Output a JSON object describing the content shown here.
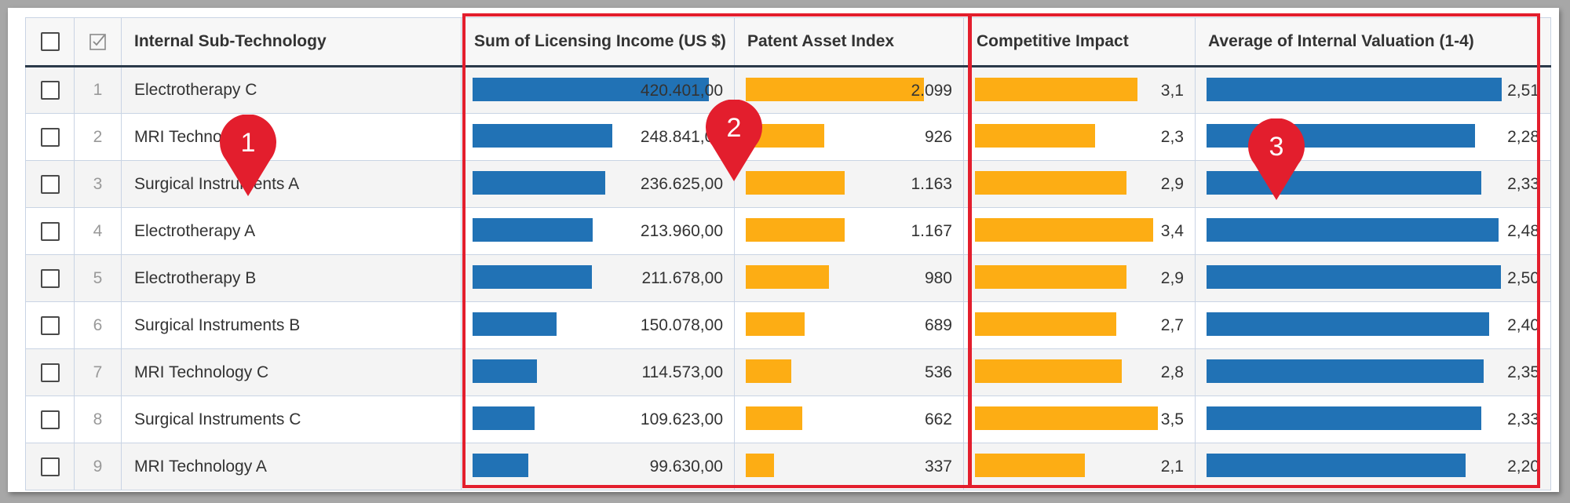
{
  "colors": {
    "blue_bar": "#2172b5",
    "orange_bar": "#fdad14",
    "highlight": "#e31e2d",
    "marker": "#e31e2d"
  },
  "header": {
    "columns": [
      "Internal Sub-Technology",
      "Sum of Licensing Income (US $)",
      "Patent Asset Index",
      "Competitive Impact",
      "Average of Internal Valuation (1-4)"
    ],
    "select_all_icon": "checkbox-icon",
    "index_icon": "checkmark-box-icon"
  },
  "markers": [
    "1",
    "2",
    "3"
  ],
  "rows": [
    {
      "index": "1",
      "name": "Electrotherapy C",
      "income": "420.401,00",
      "patent": "2.099",
      "impact": "3,1",
      "valuation": "2,51",
      "income_n": 420401,
      "patent_n": 2099,
      "impact_n": 3.1,
      "valuation_n": 2.51
    },
    {
      "index": "2",
      "name": "MRI Technology B",
      "income": "248.841,00",
      "patent": "926",
      "impact": "2,3",
      "valuation": "2,28",
      "income_n": 248841,
      "patent_n": 926,
      "impact_n": 2.3,
      "valuation_n": 2.28
    },
    {
      "index": "3",
      "name": "Surgical Instruments A",
      "income": "236.625,00",
      "patent": "1.163",
      "impact": "2,9",
      "valuation": "2,33",
      "income_n": 236625,
      "patent_n": 1163,
      "impact_n": 2.9,
      "valuation_n": 2.33
    },
    {
      "index": "4",
      "name": "Electrotherapy A",
      "income": "213.960,00",
      "patent": "1.167",
      "impact": "3,4",
      "valuation": "2,48",
      "income_n": 213960,
      "patent_n": 1167,
      "impact_n": 3.4,
      "valuation_n": 2.48
    },
    {
      "index": "5",
      "name": "Electrotherapy B",
      "income": "211.678,00",
      "patent": "980",
      "impact": "2,9",
      "valuation": "2,50",
      "income_n": 211678,
      "patent_n": 980,
      "impact_n": 2.9,
      "valuation_n": 2.5
    },
    {
      "index": "6",
      "name": "Surgical Instruments B",
      "income": "150.078,00",
      "patent": "689",
      "impact": "2,7",
      "valuation": "2,40",
      "income_n": 150078,
      "patent_n": 689,
      "impact_n": 2.7,
      "valuation_n": 2.4
    },
    {
      "index": "7",
      "name": "MRI Technology C",
      "income": "114.573,00",
      "patent": "536",
      "impact": "2,8",
      "valuation": "2,35",
      "income_n": 114573,
      "patent_n": 536,
      "impact_n": 2.8,
      "valuation_n": 2.35
    },
    {
      "index": "8",
      "name": "Surgical Instruments C",
      "income": "109.623,00",
      "patent": "662",
      "impact": "3,5",
      "valuation": "2,33",
      "income_n": 109623,
      "patent_n": 662,
      "impact_n": 3.5,
      "valuation_n": 2.33
    },
    {
      "index": "9",
      "name": "MRI Technology A",
      "income": "99.630,00",
      "patent": "337",
      "impact": "2,1",
      "valuation": "2,20",
      "income_n": 99630,
      "patent_n": 337,
      "impact_n": 2.1,
      "valuation_n": 2.2
    }
  ]
}
